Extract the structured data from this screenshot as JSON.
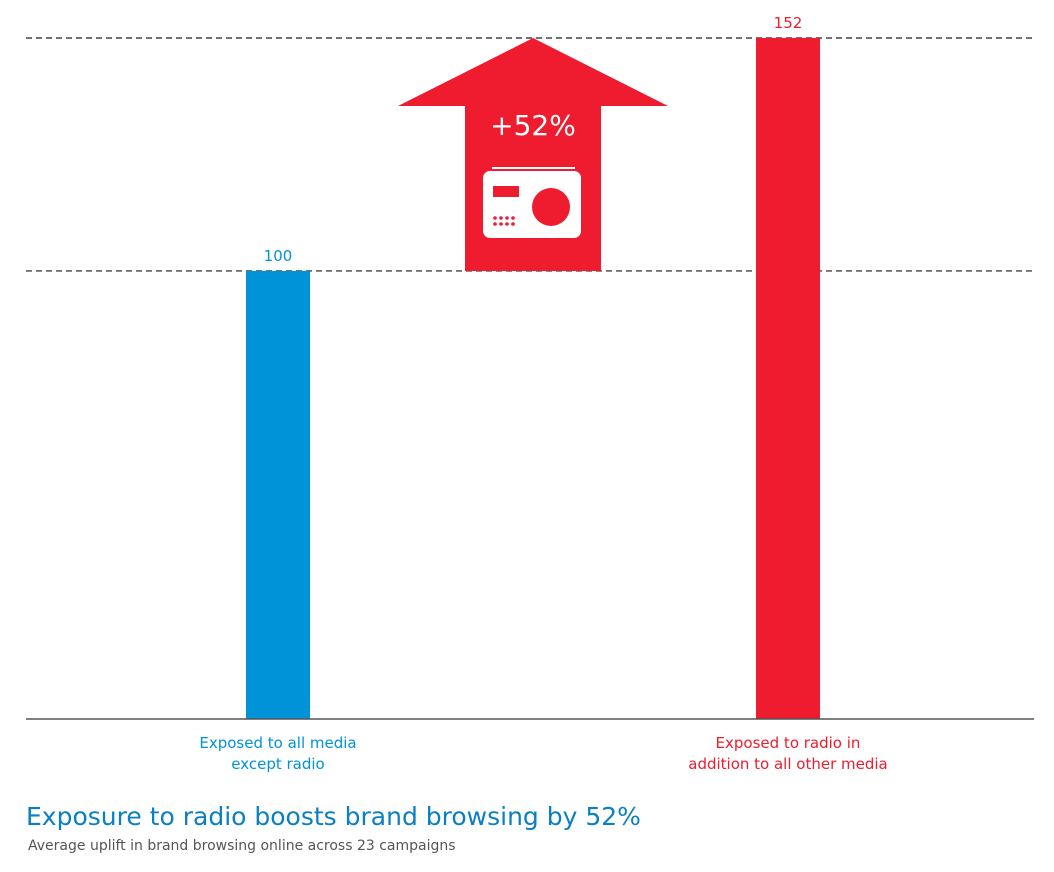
{
  "chart_data": {
    "type": "bar",
    "title": "Exposure to radio boosts brand browsing by 52%",
    "subtitle": "Average uplift in brand browsing online across 23 campaigns",
    "categories": [
      "Exposed to all media\nexcept radio",
      "Exposed to radio in\naddition to all other media"
    ],
    "values": [
      100,
      152
    ],
    "data_labels": [
      "100",
      "152"
    ],
    "ylim": [
      0,
      152
    ],
    "reference_lines": [
      100,
      152
    ],
    "grid": false,
    "colors": [
      "#0093d8",
      "#ee1c2e"
    ],
    "annotation": {
      "text": "+52%",
      "shape": "up-arrow",
      "icon": "radio-icon",
      "from": 100,
      "to": 152,
      "color": "#ee1c2e"
    }
  }
}
